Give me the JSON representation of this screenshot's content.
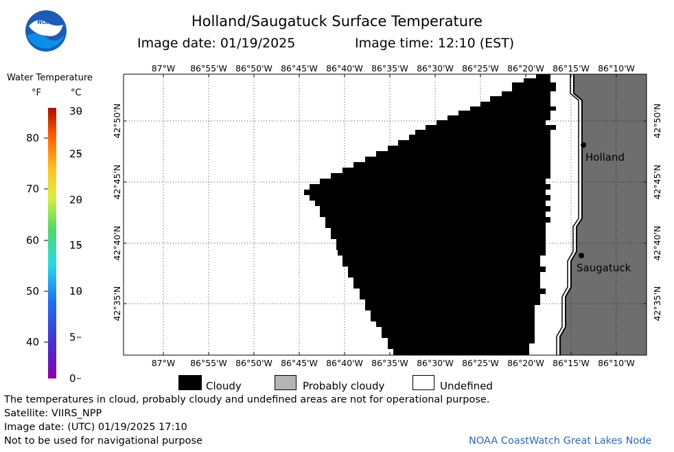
{
  "title": "Holland/Saugatuck Surface Temperature",
  "image_date_label": "Image date: 01/19/2025",
  "image_time_label": "Image time: 12:10 (EST)",
  "logo": {
    "icon": "noaa-logo",
    "text": "NOAA"
  },
  "colorbar": {
    "title": "Water Temperature",
    "unit_f": "°F",
    "unit_c": "°C",
    "f_ticks": [
      "80",
      "70",
      "60",
      "50",
      "40"
    ],
    "c_ticks": [
      "30",
      "25",
      "20",
      "15",
      "10",
      "5",
      "0"
    ]
  },
  "map": {
    "lon_labels": [
      "87°W",
      "86°55'W",
      "86°50'W",
      "86°45'W",
      "86°40'W",
      "86°35'W",
      "86°30'W",
      "86°25'W",
      "86°20'W",
      "86°15'W",
      "86°10'W"
    ],
    "lat_labels": [
      "42°50'N",
      "42°45'N",
      "42°40'N",
      "42°35'N"
    ],
    "cities": [
      {
        "name": "Holland"
      },
      {
        "name": "Saugatuck"
      }
    ],
    "colors": {
      "cloud": "#000000",
      "land": "#6e6e6e",
      "water": "#ffffff",
      "grid": "#000000"
    }
  },
  "legend": {
    "cloudy": "Cloudy",
    "probably_cloudy": "Probably cloudy",
    "undefined": "Undefined",
    "colors": {
      "cloudy": "#000000",
      "probably_cloudy": "#b4b4b4",
      "undefined": "#ffffff"
    }
  },
  "notes": {
    "disclaimer": "The temperatures in cloud, probably cloudy and undefined areas are not for operational purpose.",
    "satellite": "Satellite: VIIRS_NPP",
    "utc_date": "Image date: (UTC) 01/19/2025  17:10",
    "navigation": "Not to be used for navigational purpose",
    "credit": "NOAA CoastWatch Great Lakes Node"
  }
}
